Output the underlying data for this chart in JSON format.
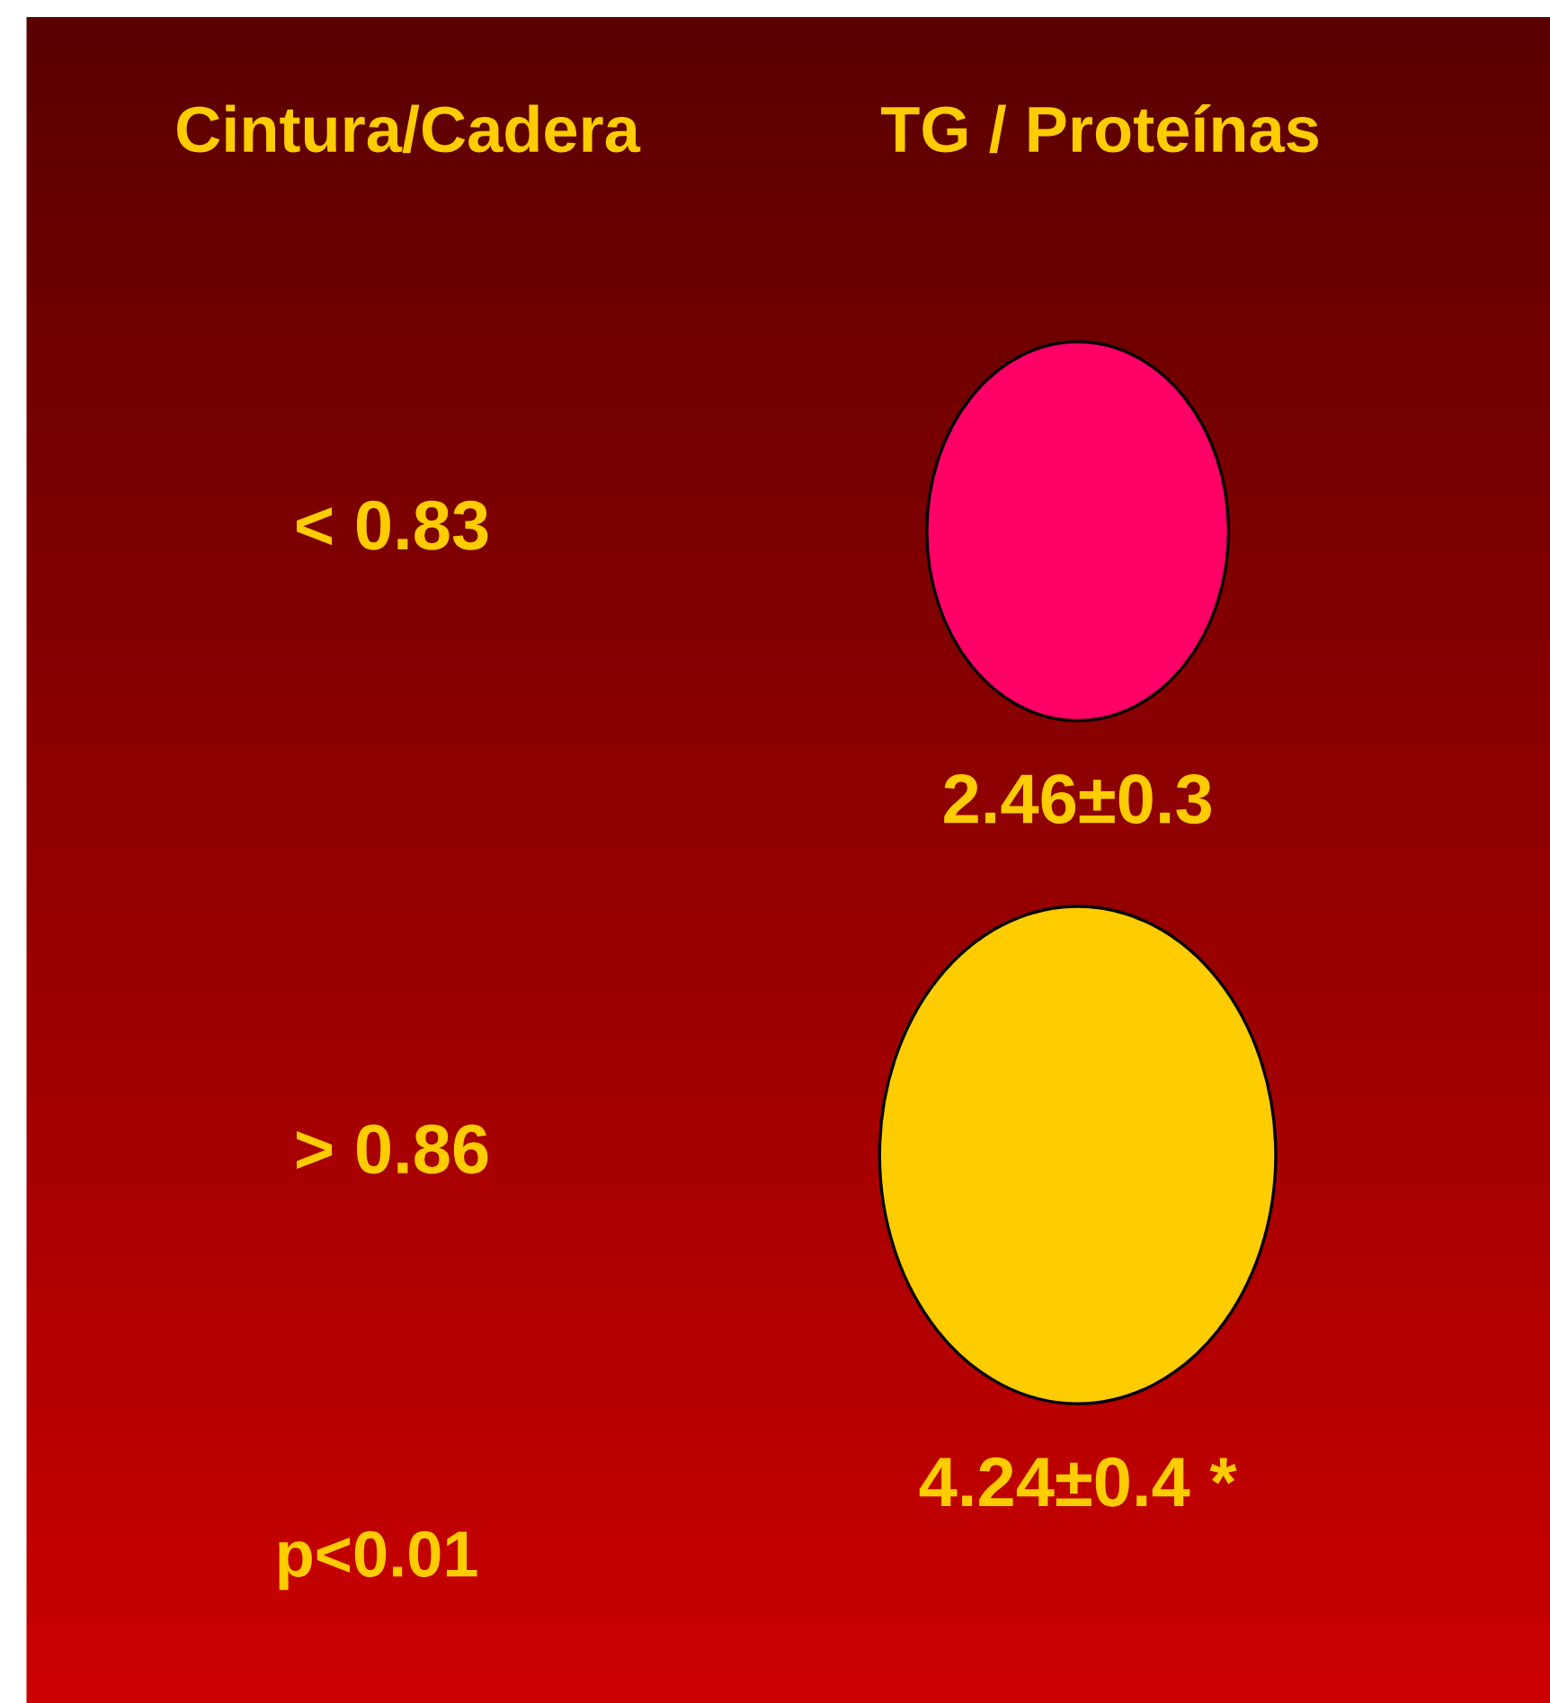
{
  "chart_data": {
    "type": "other",
    "ylabel": "Cintura/Cadera",
    "xlabel": "TG / Proteínas",
    "categories": [
      "< 0.83",
      "> 0.86"
    ],
    "values": [
      2.46,
      4.24
    ],
    "value_labels": [
      "2.46±0.3",
      "4.24±0.4 *"
    ],
    "colors": [
      "#ff0066",
      "#ffcc00"
    ],
    "annotations": [
      "p<0.01"
    ]
  }
}
